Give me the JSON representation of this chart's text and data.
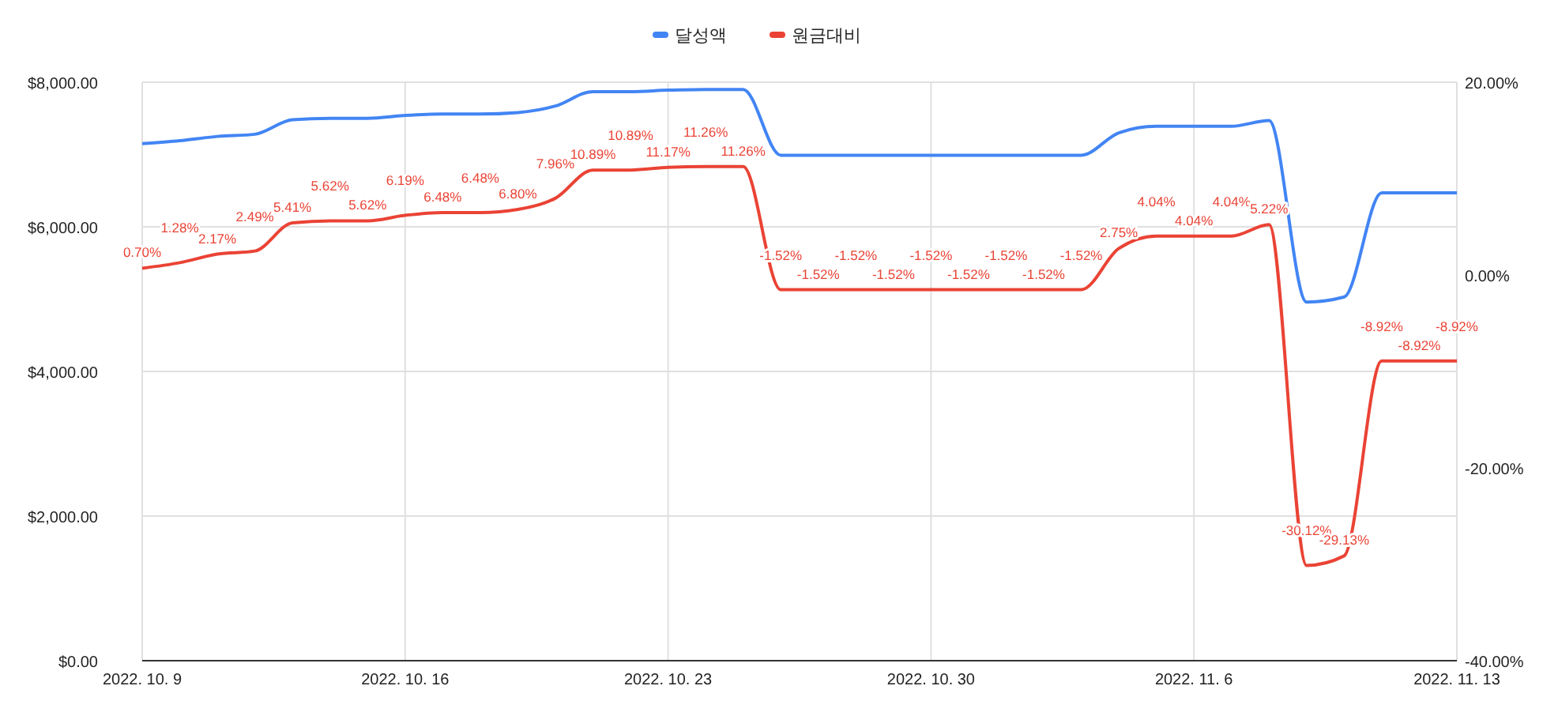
{
  "chart_data": {
    "type": "line",
    "x": [
      "2022-10-09",
      "2022-10-10",
      "2022-10-11",
      "2022-10-12",
      "2022-10-13",
      "2022-10-14",
      "2022-10-15",
      "2022-10-16",
      "2022-10-17",
      "2022-10-18",
      "2022-10-19",
      "2022-10-20",
      "2022-10-21",
      "2022-10-22",
      "2022-10-23",
      "2022-10-24",
      "2022-10-25",
      "2022-10-26",
      "2022-10-27",
      "2022-10-28",
      "2022-10-29",
      "2022-10-30",
      "2022-10-31",
      "2022-11-01",
      "2022-11-02",
      "2022-11-03",
      "2022-11-04",
      "2022-11-05",
      "2022-11-06",
      "2022-11-07",
      "2022-11-08",
      "2022-11-09",
      "2022-11-10",
      "2022-11-11",
      "2022-11-12",
      "2022-11-13"
    ],
    "series": [
      {
        "name": "달성액",
        "color": "#4285f4",
        "values": [
          7150,
          7190,
          7250,
          7280,
          7480,
          7500,
          7500,
          7540,
          7560,
          7560,
          7580,
          7670,
          7870,
          7870,
          7890,
          7900,
          7900,
          6990,
          6990,
          6990,
          6990,
          6990,
          6990,
          6990,
          6990,
          6990,
          7300,
          7390,
          7390,
          7390,
          7470,
          4960,
          5030,
          6470,
          6470,
          6470
        ]
      },
      {
        "name": "원금대비",
        "color": "#ea4335",
        "axis": "y2",
        "values": [
          0.7,
          1.28,
          2.17,
          2.49,
          5.41,
          5.62,
          5.62,
          6.19,
          6.48,
          6.48,
          6.8,
          7.96,
          10.89,
          10.89,
          11.17,
          11.26,
          11.26,
          -1.52,
          -1.52,
          -1.52,
          -1.52,
          -1.52,
          -1.52,
          -1.52,
          -1.52,
          -1.52,
          2.75,
          4.04,
          4.04,
          4.04,
          5.22,
          -30.12,
          -29.13,
          -8.92,
          -8.92,
          -8.92
        ],
        "value_labels": [
          "0.70%",
          "1.28%",
          "2.17%",
          "2.49%",
          "5.41%",
          "5.62%",
          "5.62%",
          "6.19%",
          "6.48%",
          "6.48%",
          "6.80%",
          "7.96%",
          "10.89%",
          "10.89%",
          "11.17%",
          "11.26%",
          "11.26%",
          "-1.52%",
          "-1.52%",
          "-1.52%",
          "-1.52%",
          "-1.52%",
          "-1.52%",
          "-1.52%",
          "-1.52%",
          "-1.52%",
          "2.75%",
          "4.04%",
          "4.04%",
          "4.04%",
          "5.22%",
          "-30.12%",
          "-29.13%",
          "-8.92%",
          "-8.92%",
          "-8.92%"
        ]
      }
    ],
    "xlim": [
      "2022-10-09",
      "2022-11-13"
    ],
    "xticks": [
      {
        "value": "2022-10-09",
        "label": "2022. 10. 9"
      },
      {
        "value": "2022-10-16",
        "label": "2022. 10. 16"
      },
      {
        "value": "2022-10-23",
        "label": "2022. 10. 23"
      },
      {
        "value": "2022-10-30",
        "label": "2022. 10. 30"
      },
      {
        "value": "2022-11-06",
        "label": "2022. 11. 6"
      },
      {
        "value": "2022-11-13",
        "label": "2022. 11. 13"
      }
    ],
    "ylim": [
      0,
      8000
    ],
    "yticks": [
      {
        "value": 0,
        "label": "$0.00"
      },
      {
        "value": 2000,
        "label": "$2,000.00"
      },
      {
        "value": 4000,
        "label": "$4,000.00"
      },
      {
        "value": 6000,
        "label": "$6,000.00"
      },
      {
        "value": 8000,
        "label": "$8,000.00"
      }
    ],
    "y2lim": [
      -40,
      20
    ],
    "y2ticks": [
      {
        "value": -40,
        "label": "-40.00%"
      },
      {
        "value": -20,
        "label": "-20.00%"
      },
      {
        "value": 0,
        "label": "0.00%"
      },
      {
        "value": 20,
        "label": "20.00%"
      }
    ],
    "grid": true,
    "legend": "top",
    "marker": "none",
    "line_style": "solid"
  }
}
